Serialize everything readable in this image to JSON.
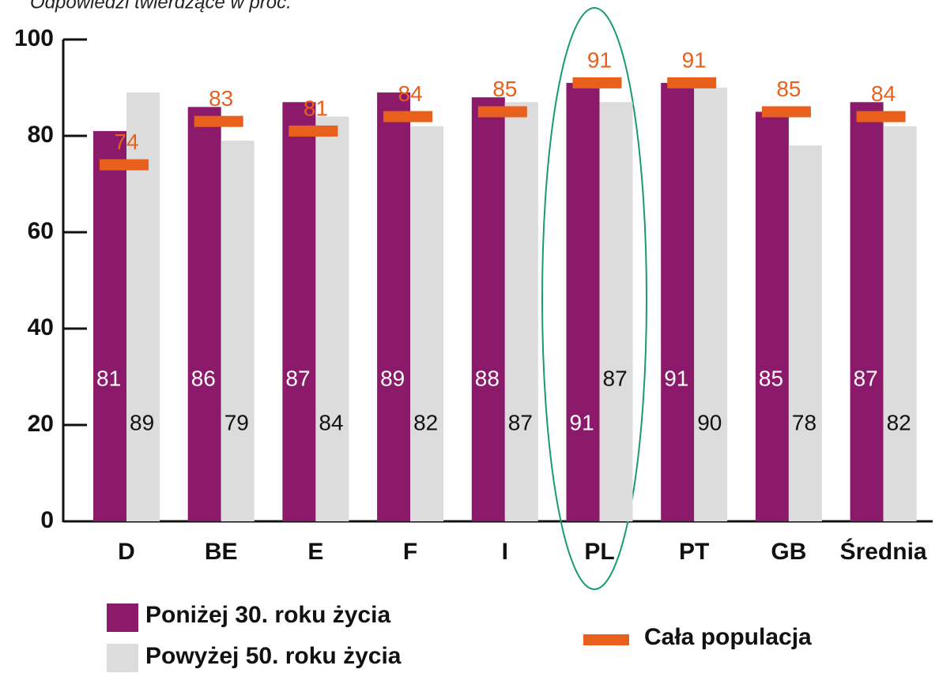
{
  "chart_data": {
    "type": "bar",
    "subtitle": "Odpowiedzi twierdzące w proc.",
    "categories": [
      "D",
      "BE",
      "E",
      "F",
      "I",
      "PL",
      "PT",
      "GB",
      "Średnia"
    ],
    "series": [
      {
        "name": "Poniżej 30. roku życia",
        "color": "#8b1a6b",
        "values": [
          81,
          86,
          87,
          89,
          88,
          91,
          91,
          85,
          87
        ]
      },
      {
        "name": "Powyżej 50. roku życia",
        "color": "#dcdcdc",
        "values": [
          89,
          79,
          84,
          82,
          87,
          87,
          90,
          78,
          82
        ]
      },
      {
        "name": "Cała populacja",
        "color": "#e8601c",
        "values": [
          74,
          83,
          81,
          84,
          85,
          91,
          91,
          85,
          84
        ]
      }
    ],
    "ylim": [
      0,
      100
    ],
    "yticks": [
      0,
      20,
      40,
      60,
      80,
      100
    ]
  }
}
